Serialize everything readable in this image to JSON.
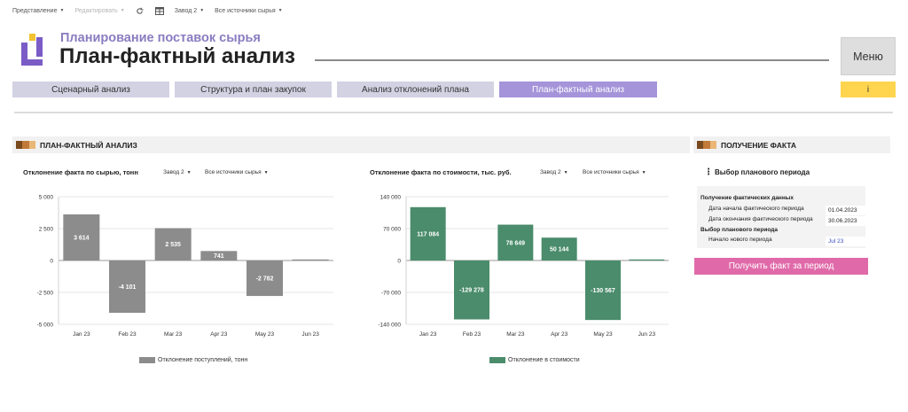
{
  "toolbar": {
    "view_label": "Представление",
    "edit_label": "Редактировать",
    "plant": "Завод 2",
    "source": "Все источники сырья"
  },
  "header": {
    "subtitle": "Планирование поставок сырья",
    "title": "План-фактный анализ",
    "menu_label": "Меню",
    "info_label": "i"
  },
  "tabs": [
    {
      "label": "Сценарный анализ",
      "active": false
    },
    {
      "label": "Структура и план закупок",
      "active": false
    },
    {
      "label": "Анализ отклонений плана",
      "active": false
    },
    {
      "label": "План-фактный анализ",
      "active": true
    }
  ],
  "sections": {
    "analysis": "ПЛАН-ФАКТНЫЙ АНАЛИЗ",
    "fact": "ПОЛУЧЕНИЕ ФАКТА"
  },
  "chart_filters": {
    "plant": "Завод 2",
    "source": "Все источники сырья"
  },
  "chart_data": [
    {
      "type": "bar",
      "title": "Отклонение факта по сырью, тонн",
      "categories": [
        "Jan 23",
        "Feb 23",
        "Mar 23",
        "Apr 23",
        "May 23",
        "Jun 23"
      ],
      "series": [
        {
          "name": "Отклонение поступлений, тонн",
          "values": [
            3614,
            -4101,
            2535,
            741,
            -2782,
            0
          ]
        }
      ],
      "data_labels": [
        "3 614",
        "-4 101",
        "2 535",
        "741",
        "-2 782",
        ""
      ],
      "ylim": [
        -5000,
        5000
      ],
      "yticks": [
        5000,
        2500,
        0,
        -2500,
        -5000
      ],
      "ytick_labels": [
        "5 000",
        "2 500",
        "0",
        "-2 500",
        "-5 000"
      ],
      "color": "#8c8c8c",
      "grid": true,
      "legend": "bottom"
    },
    {
      "type": "bar",
      "title": "Отклонение факта по стоимости, тыс. руб.",
      "categories": [
        "Jan 23",
        "Feb 23",
        "Mar 23",
        "Apr 23",
        "May 23",
        "Jun 23"
      ],
      "series": [
        {
          "name": "Отклонение в стоимости",
          "values": [
            117084,
            -129278,
            78649,
            50144,
            -130567,
            0
          ]
        }
      ],
      "data_labels": [
        "117 084",
        "-129 278",
        "78 649",
        "50 144",
        "-130 567",
        ""
      ],
      "ylim": [
        -140000,
        140000
      ],
      "yticks": [
        140000,
        70000,
        0,
        -70000,
        -140000
      ],
      "ytick_labels": [
        "140 000",
        "70 000",
        "0",
        "-70 000",
        "-140 000"
      ],
      "color": "#4a8c6b",
      "grid": true,
      "legend": "bottom"
    }
  ],
  "period": {
    "heading": "Выбор планового периода",
    "actual_group": "Получение фактических данных",
    "start_label": "Дата начала фактического периода",
    "start_value": "01.04.2023",
    "end_label": "Дата окончания фактического периода",
    "end_value": "30.06.2023",
    "plan_group": "Выбор планового периода",
    "new_label": "Начало нового периода",
    "new_value": "Jul 23",
    "button": "Получить факт за период"
  },
  "colors": {
    "accent": "#a594d9",
    "tab": "#d3d2e3",
    "gray_bar": "#8c8c8c",
    "green_bar": "#4a8c6b",
    "button_pink": "#e06aa9",
    "info_yellow": "#ffd54f"
  }
}
